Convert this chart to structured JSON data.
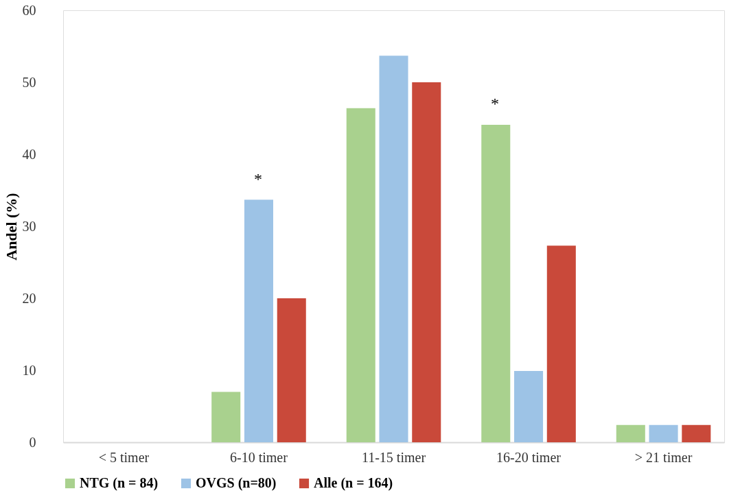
{
  "chart_data": {
    "type": "bar",
    "ylabel": "Andel (%)",
    "categories": [
      "< 5 timer",
      "6-10 timer",
      "11-15 timer",
      "16-20 timer",
      "> 21 timer"
    ],
    "series": [
      {
        "name": "NTG (n = 84)",
        "color": "#a9d18e",
        "values": [
          0,
          7.0,
          46.4,
          44.1,
          2.4
        ]
      },
      {
        "name": "OVGS (n=80)",
        "color": "#9dc3e6",
        "values": [
          0,
          33.7,
          53.7,
          9.9,
          2.4
        ]
      },
      {
        "name": "Alle (n = 164)",
        "color": "#c9493a",
        "values": [
          0,
          20.0,
          50.0,
          27.3,
          2.4
        ]
      }
    ],
    "ylim": [
      0,
      60
    ],
    "yticks": [
      0,
      10,
      20,
      30,
      40,
      50,
      60
    ],
    "grid": false,
    "legend": "bottom",
    "annotations": [
      "*",
      "*"
    ]
  }
}
